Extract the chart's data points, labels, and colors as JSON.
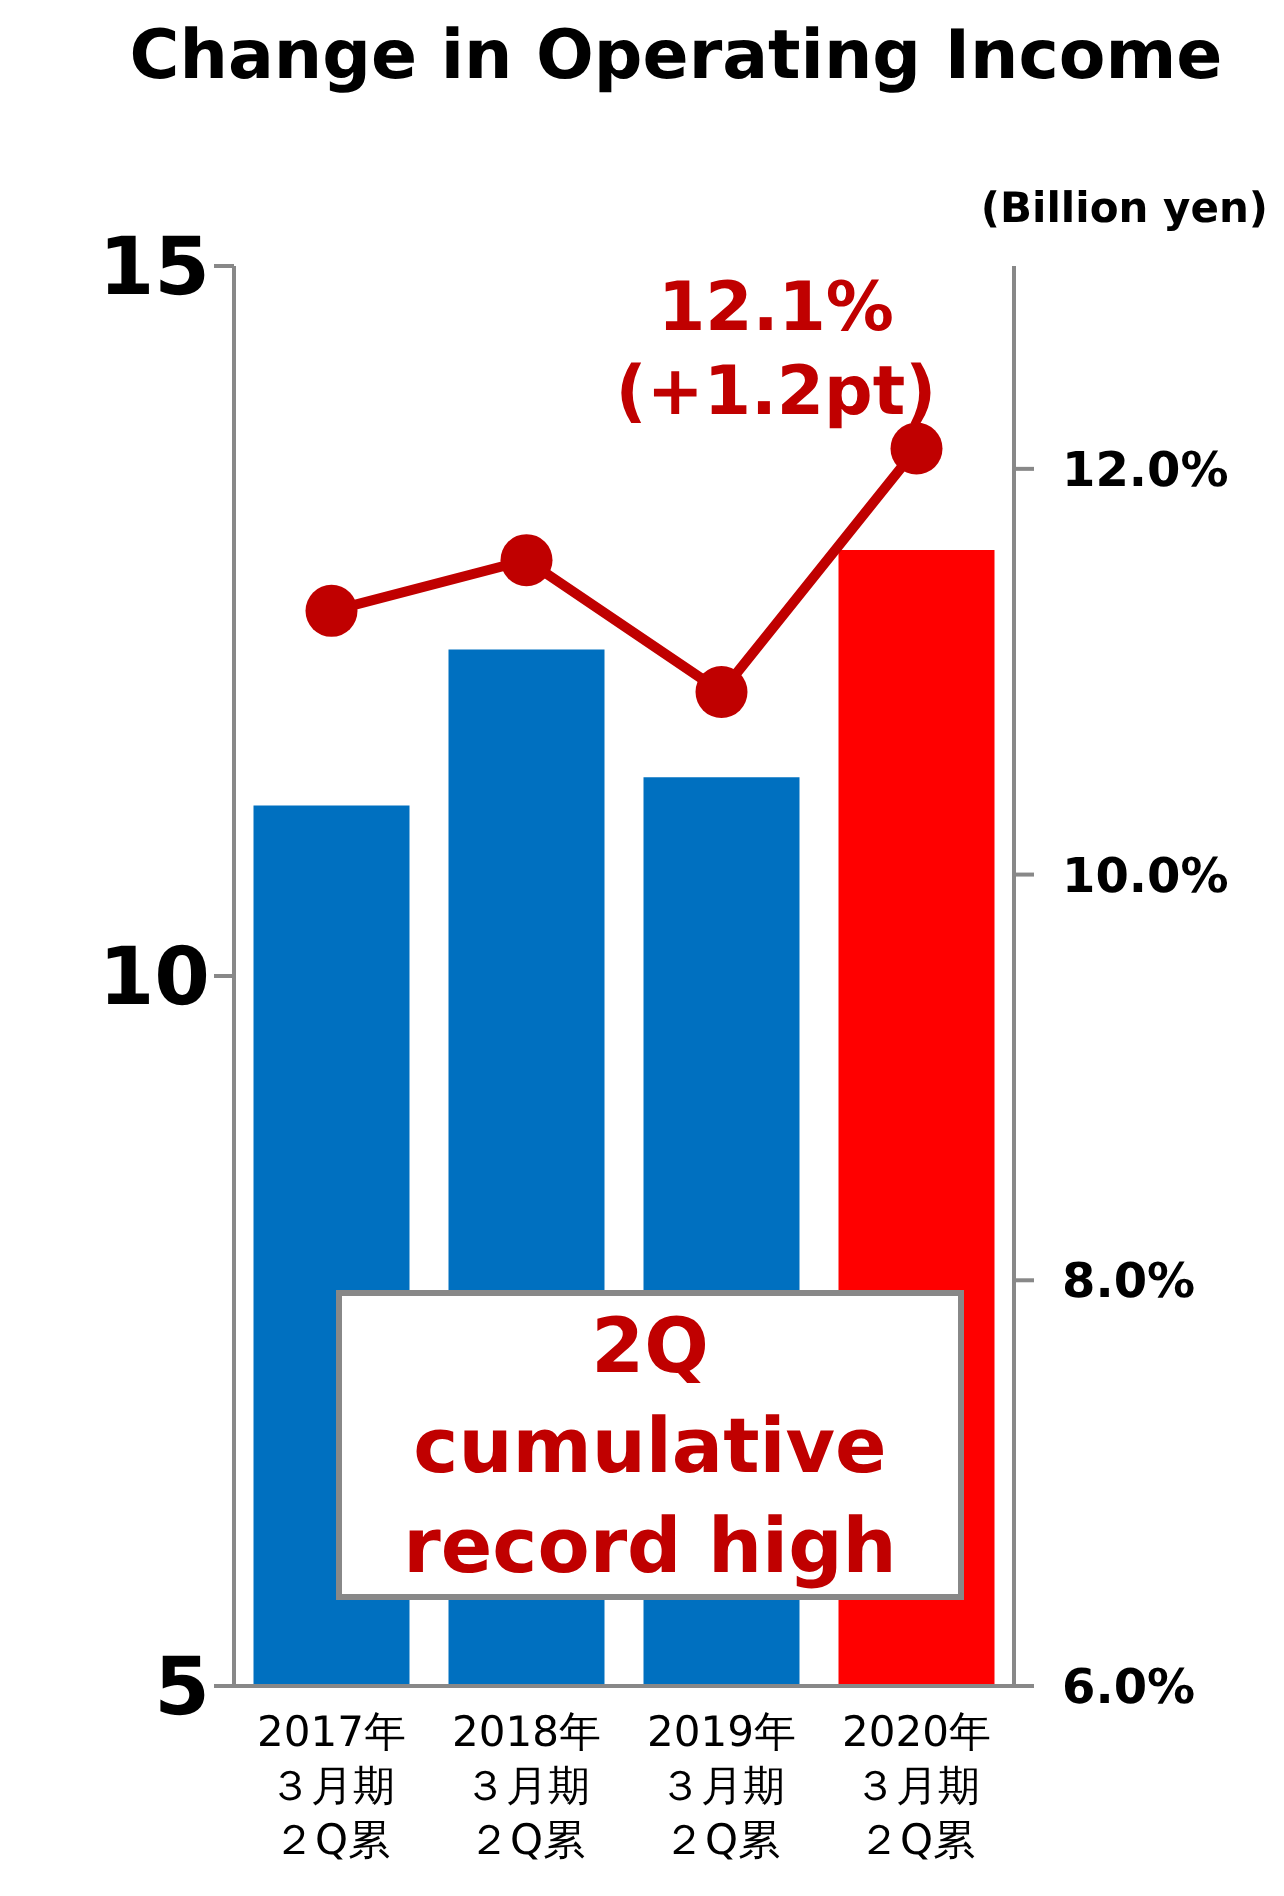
{
  "chart_data": {
    "type": "bar",
    "title": "Change in Operating Income",
    "y2label": "(Billion yen)",
    "categories": [
      "2017年３月期２Q累",
      "2018年３月期２Q累",
      "2019年３月期２Q累",
      "2020年３月期２Q累"
    ],
    "series": [
      {
        "values": [
          11.2,
          12.3,
          11.4,
          13.0
        ],
        "colors": [
          "#0070c0",
          "#0070c0",
          "#0070c0",
          "#ff0000"
        ]
      },
      {
        "type": "line",
        "axis": "y2",
        "color": "#c00000",
        "values": [
          11.3,
          11.55,
          10.9,
          12.1
        ],
        "marker": "circle"
      }
    ],
    "ylim": [
      5,
      15
    ],
    "yticks": [
      5,
      10,
      15
    ],
    "y2lim": [
      6,
      13
    ],
    "y2ticks": [
      {
        "value": 6,
        "label": "6.0%"
      },
      {
        "value": 8,
        "label": "8.0%"
      },
      {
        "value": 10,
        "label": "10.0%"
      },
      {
        "value": 12,
        "label": "12.0%"
      }
    ],
    "annotations": [
      "12.1%\n(+1.2pt)",
      "2Q\ncumulative\nrecord high"
    ],
    "grid": false,
    "legend": false
  }
}
